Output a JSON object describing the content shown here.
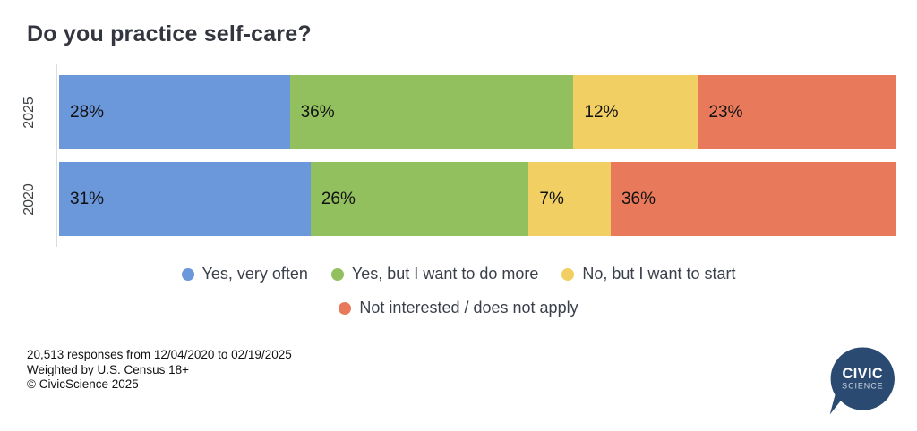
{
  "title": "Do you practice self-care?",
  "chart_data": {
    "type": "bar",
    "orientation": "horizontal-stacked",
    "categories": [
      "2025",
      "2020"
    ],
    "series": [
      {
        "name": "Yes, very often",
        "color": "#6b97db",
        "values": [
          28,
          31
        ]
      },
      {
        "name": "Yes, but I want to do more",
        "color": "#93c05f",
        "values": [
          36,
          26
        ]
      },
      {
        "name": "No, but I want to start",
        "color": "#f2cf63",
        "values": [
          12,
          7
        ]
      },
      {
        "name": "Not interested / does not apply",
        "color": "#e87a5b",
        "values": [
          23,
          36
        ]
      }
    ],
    "value_suffix": "%",
    "value_labels_inside": true,
    "legend_position": "bottom",
    "grid": false,
    "axis_line_color": "#dcdcdc"
  },
  "legend": {
    "rows": [
      [
        0,
        1,
        2
      ],
      [
        3
      ]
    ]
  },
  "footer": {
    "lines": [
      "20,513 responses from 12/04/2020 to 02/19/2025",
      "Weighted by U.S. Census 18+",
      "© CivicScience 2025"
    ]
  },
  "logo": {
    "line1": "CIVIC",
    "line2": "SCIENCE",
    "bubble_color": "#2b4a72"
  }
}
